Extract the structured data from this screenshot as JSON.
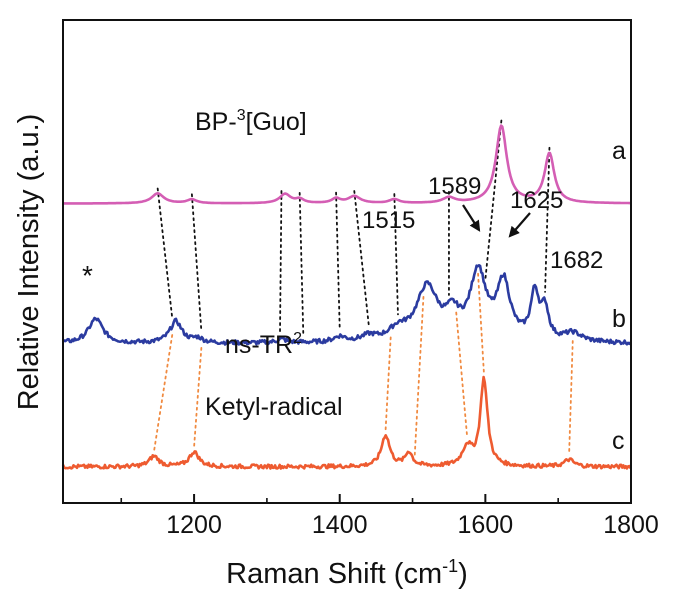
{
  "chart_data": {
    "type": "line",
    "xlabel_main": "Raman Shift (cm",
    "xlabel_sup": "-1",
    "xlabel_end": ")",
    "ylabel": "Relative Intensity (a.u.)",
    "xlim": [
      1020,
      1800
    ],
    "xticks": [
      1200,
      1400,
      1600,
      1800
    ],
    "xtick_labels": [
      "1200",
      "1400",
      "1600",
      "1800"
    ],
    "series": [
      {
        "id": "a",
        "letter": "a",
        "name_main": "BP-",
        "name_sup": "3",
        "name_end": "[Guo]",
        "color": "#d45eb4",
        "baseline": 0.62,
        "scale": 0.16,
        "noise": 0.0,
        "peaks": [
          [
            1150,
            0.13,
            10
          ],
          [
            1197,
            0.05,
            8
          ],
          [
            1325,
            0.12,
            9
          ],
          [
            1345,
            0.05,
            7
          ],
          [
            1395,
            0.06,
            7
          ],
          [
            1420,
            0.09,
            10
          ],
          [
            1475,
            0.05,
            8
          ],
          [
            1550,
            0.07,
            10
          ],
          [
            1622,
            1.0,
            9
          ],
          [
            1688,
            0.64,
            8
          ]
        ]
      },
      {
        "id": "b",
        "letter": "b",
        "name_main": "ns-TR",
        "name_sup": "2",
        "name_end": "",
        "color": "#2b3ba0",
        "baseline": 0.33,
        "scale": 0.18,
        "noise": 0.05,
        "peaks": [
          [
            1065,
            0.28,
            12
          ],
          [
            1175,
            0.25,
            10
          ],
          [
            1205,
            0.05,
            8
          ],
          [
            1320,
            0.04,
            8
          ],
          [
            1400,
            0.06,
            10
          ],
          [
            1440,
            0.06,
            12
          ],
          [
            1480,
            0.12,
            15
          ],
          [
            1520,
            0.62,
            18
          ],
          [
            1555,
            0.25,
            12
          ],
          [
            1590,
            0.78,
            13
          ],
          [
            1625,
            0.66,
            11
          ],
          [
            1668,
            0.54,
            7
          ],
          [
            1682,
            0.34,
            6
          ],
          [
            1720,
            0.1,
            15
          ]
        ]
      },
      {
        "id": "c",
        "letter": "c",
        "name_main": "Ketyl-radical",
        "name_sup": "",
        "name_end": "",
        "color": "#ee5b30",
        "baseline": 0.075,
        "scale": 0.18,
        "noise": 0.045,
        "peaks": [
          [
            1145,
            0.12,
            8
          ],
          [
            1200,
            0.17,
            8
          ],
          [
            1463,
            0.36,
            7
          ],
          [
            1495,
            0.16,
            6
          ],
          [
            1575,
            0.22,
            8
          ],
          [
            1598,
            1.0,
            6
          ],
          [
            1715,
            0.08,
            8
          ]
        ]
      }
    ],
    "annotations": {
      "peak_labels": [
        {
          "text": "1515",
          "x": 1515
        },
        {
          "text": "1589",
          "x": 1589
        },
        {
          "text": "1625",
          "x": 1625
        },
        {
          "text": "1682",
          "x": 1682
        }
      ],
      "asterisk": "*",
      "black_guides": [
        [
          1150,
          1170
        ],
        [
          1197,
          1210
        ],
        [
          1320,
          1318
        ],
        [
          1345,
          1350
        ],
        [
          1395,
          1400
        ],
        [
          1420,
          1440
        ],
        [
          1475,
          1480
        ],
        [
          1550,
          1550
        ],
        [
          1622,
          1600
        ],
        [
          1688,
          1682
        ]
      ],
      "orange_guides": [
        [
          1170,
          1145
        ],
        [
          1210,
          1200
        ],
        [
          1470,
          1463
        ],
        [
          1515,
          1503
        ],
        [
          1560,
          1575
        ],
        [
          1590,
          1598
        ],
        [
          1720,
          1715
        ]
      ]
    }
  }
}
